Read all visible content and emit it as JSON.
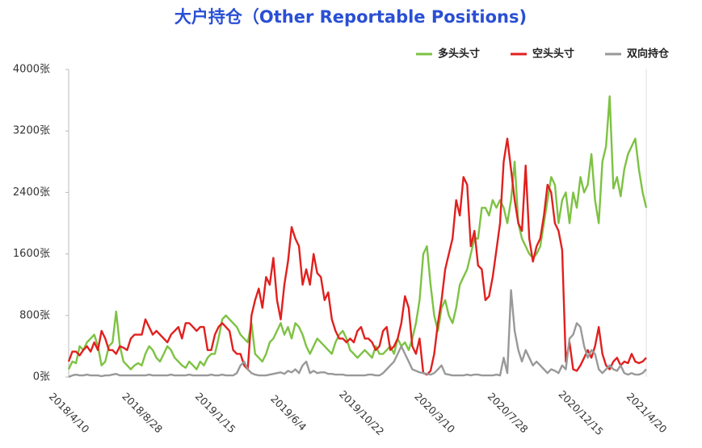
{
  "chart_data": {
    "type": "line",
    "title": "大户持仓（Other Reportable Positions)",
    "categories": [
      "2018/4/10",
      null,
      null,
      null,
      null,
      null,
      null,
      null,
      null,
      null,
      null,
      null,
      null,
      null,
      null,
      null,
      null,
      null,
      null,
      null,
      "2018/8/28",
      null,
      null,
      null,
      null,
      null,
      null,
      null,
      null,
      null,
      null,
      null,
      null,
      null,
      null,
      null,
      null,
      null,
      null,
      null,
      "2019/1/15",
      null,
      null,
      null,
      null,
      null,
      null,
      null,
      null,
      null,
      null,
      null,
      null,
      null,
      null,
      null,
      null,
      null,
      null,
      null,
      "2019/6/4",
      null,
      null,
      null,
      null,
      null,
      null,
      null,
      null,
      null,
      null,
      null,
      null,
      null,
      null,
      null,
      null,
      null,
      null,
      null,
      "2019/10/22",
      null,
      null,
      null,
      null,
      null,
      null,
      null,
      null,
      null,
      null,
      null,
      null,
      null,
      null,
      null,
      null,
      null,
      null,
      null,
      "2020/3/10",
      null,
      null,
      null,
      null,
      null,
      null,
      null,
      null,
      null,
      null,
      null,
      null,
      null,
      null,
      null,
      null,
      null,
      null,
      null,
      "2020/7/28",
      null,
      null,
      null,
      null,
      null,
      null,
      null,
      null,
      null,
      null,
      null,
      null,
      null,
      null,
      null,
      null,
      null,
      null,
      null,
      "2020/12/15",
      null,
      null,
      null,
      null,
      null,
      null,
      null,
      null,
      null,
      null,
      null,
      null,
      null,
      null,
      null,
      null,
      null,
      "2021/4/20"
    ],
    "series": [
      {
        "name": "多头头寸",
        "color": "#7dc243",
        "values": [
          100,
          200,
          180,
          400,
          350,
          450,
          500,
          550,
          400,
          150,
          200,
          400,
          450,
          850,
          400,
          200,
          150,
          100,
          150,
          180,
          150,
          300,
          400,
          350,
          250,
          200,
          300,
          400,
          350,
          250,
          200,
          150,
          120,
          200,
          150,
          100,
          200,
          150,
          250,
          300,
          300,
          500,
          750,
          800,
          750,
          700,
          650,
          550,
          500,
          450,
          700,
          300,
          250,
          200,
          300,
          450,
          500,
          600,
          700,
          550,
          650,
          500,
          700,
          650,
          550,
          400,
          300,
          400,
          500,
          450,
          400,
          350,
          300,
          450,
          550,
          600,
          500,
          350,
          300,
          250,
          300,
          350,
          300,
          250,
          400,
          300,
          300,
          350,
          400,
          300,
          500,
          400,
          450,
          350,
          500,
          700,
          1000,
          1600,
          1700,
          1200,
          800,
          600,
          900,
          1000,
          800,
          700,
          900,
          1200,
          1300,
          1400,
          1600,
          1800,
          1800,
          2200,
          2200,
          2100,
          2300,
          2200,
          2300,
          2200,
          2000,
          2300,
          2800,
          2000,
          1800,
          1700,
          1600,
          1550,
          1600,
          1700,
          2000,
          2300,
          2600,
          2500,
          2000,
          2300,
          2400,
          2000,
          2400,
          2200,
          2600,
          2400,
          2500,
          2900,
          2300,
          2000,
          2800,
          3000,
          3650,
          2450,
          2600,
          2350,
          2700,
          2900,
          3000,
          3100,
          2700,
          2400,
          2200
        ]
      },
      {
        "name": "空头头寸",
        "color": "#e0201e",
        "values": [
          200,
          330,
          330,
          280,
          350,
          400,
          330,
          450,
          350,
          600,
          500,
          350,
          350,
          300,
          400,
          380,
          350,
          500,
          550,
          550,
          550,
          750,
          650,
          550,
          600,
          550,
          500,
          450,
          550,
          600,
          650,
          500,
          700,
          700,
          650,
          600,
          650,
          650,
          350,
          350,
          550,
          650,
          700,
          650,
          600,
          350,
          300,
          300,
          150,
          100,
          800,
          1000,
          1150,
          900,
          1300,
          1200,
          1550,
          1000,
          750,
          1200,
          1500,
          1950,
          1800,
          1700,
          1200,
          1400,
          1200,
          1600,
          1350,
          1300,
          1000,
          1100,
          750,
          600,
          500,
          500,
          450,
          500,
          450,
          600,
          650,
          500,
          500,
          450,
          350,
          400,
          600,
          650,
          350,
          400,
          500,
          700,
          1050,
          900,
          400,
          300,
          500,
          50,
          30,
          80,
          300,
          700,
          1000,
          1400,
          1600,
          1800,
          2300,
          2100,
          2600,
          2500,
          1700,
          1900,
          1450,
          1400,
          1000,
          1050,
          1300,
          1650,
          2000,
          2800,
          3100,
          2700,
          2300,
          2000,
          1900,
          2750,
          1800,
          1500,
          1700,
          1800,
          2100,
          2500,
          2400,
          2000,
          1900,
          1650,
          200,
          450,
          100,
          80,
          150,
          250,
          350,
          250,
          400,
          650,
          300,
          150,
          100,
          200,
          250,
          150,
          200,
          180,
          300,
          200,
          180,
          200,
          250
        ]
      },
      {
        "name": "双向持仓",
        "color": "#999999",
        "values": [
          0,
          20,
          30,
          20,
          20,
          30,
          20,
          20,
          20,
          10,
          20,
          20,
          30,
          40,
          20,
          20,
          20,
          20,
          20,
          20,
          20,
          20,
          30,
          20,
          20,
          20,
          20,
          20,
          30,
          20,
          20,
          20,
          20,
          30,
          20,
          20,
          20,
          20,
          20,
          30,
          20,
          20,
          30,
          20,
          20,
          20,
          50,
          150,
          200,
          100,
          50,
          30,
          20,
          20,
          20,
          30,
          40,
          50,
          60,
          40,
          80,
          60,
          100,
          50,
          150,
          200,
          50,
          80,
          50,
          60,
          60,
          40,
          40,
          30,
          30,
          30,
          20,
          20,
          20,
          20,
          20,
          20,
          30,
          30,
          20,
          20,
          50,
          100,
          150,
          200,
          300,
          400,
          300,
          200,
          100,
          80,
          60,
          50,
          40,
          30,
          50,
          100,
          150,
          40,
          30,
          20,
          20,
          20,
          20,
          30,
          20,
          30,
          30,
          20,
          20,
          20,
          20,
          30,
          20,
          250,
          50,
          1130,
          600,
          350,
          200,
          350,
          250,
          150,
          200,
          150,
          100,
          50,
          100,
          80,
          50,
          150,
          100,
          500,
          550,
          700,
          650,
          400,
          250,
          350,
          300,
          100,
          50,
          100,
          150,
          100,
          80,
          150,
          50,
          30,
          50,
          30,
          30,
          50,
          100
        ]
      }
    ],
    "ylim": [
      0,
      4000
    ],
    "yticks": [
      {
        "value": 0,
        "label": "0张"
      },
      {
        "value": 800,
        "label": "800张"
      },
      {
        "value": 1600,
        "label": "1600张"
      },
      {
        "value": 2400,
        "label": "2400张"
      },
      {
        "value": 3200,
        "label": "3200张"
      },
      {
        "value": 4000,
        "label": "4000张"
      }
    ],
    "grid": false,
    "legend": "top-right"
  }
}
